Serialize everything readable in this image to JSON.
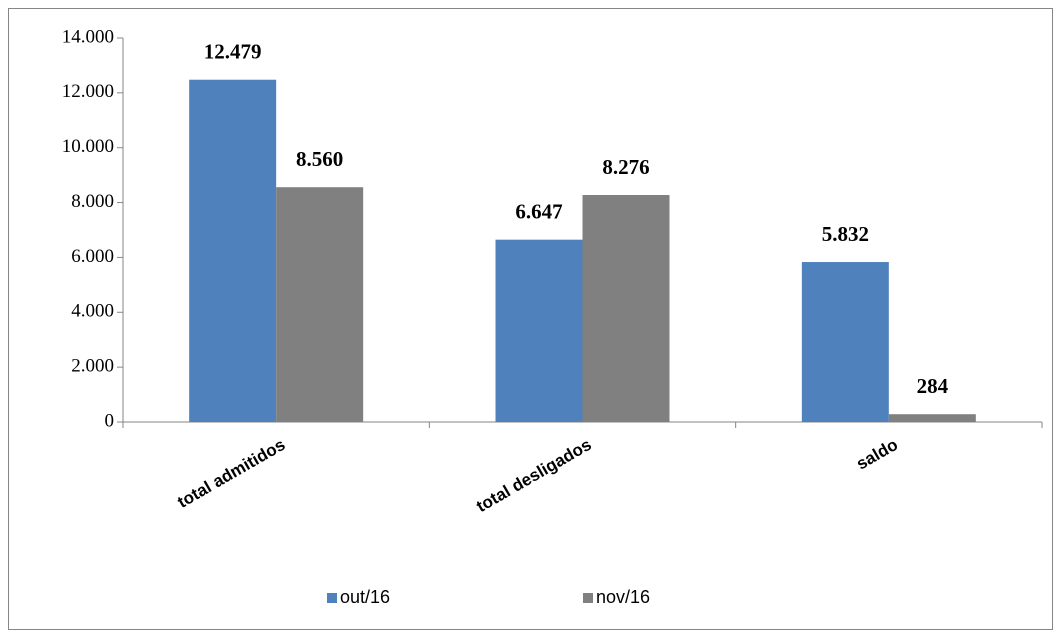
{
  "chart_data": {
    "type": "bar",
    "categories": [
      "total admitidos",
      "total desligados",
      "saldo"
    ],
    "series": [
      {
        "name": "out/16",
        "color": "#4f81bd",
        "values": [
          12479,
          6647,
          5832
        ],
        "value_labels": [
          "12.479",
          "6.647",
          "5.832"
        ]
      },
      {
        "name": "nov/16",
        "color": "#808080",
        "values": [
          8560,
          8276,
          284
        ],
        "value_labels": [
          "8.560",
          "8.276",
          "284"
        ]
      }
    ],
    "ylim": [
      0,
      14000
    ],
    "yticks": [
      0,
      {
        "value": 2000,
        "label": "2.000"
      },
      {
        "value": 4000,
        "label": "4.000"
      },
      {
        "value": 6000,
        "label": "6.000"
      },
      {
        "value": 8000,
        "label": "8.000"
      },
      {
        "value": 10000,
        "label": "10.000"
      },
      {
        "value": 12000,
        "label": "12.000"
      },
      {
        "value": 14000,
        "label": "14.000"
      }
    ],
    "legend": "bottom",
    "grid": false
  }
}
